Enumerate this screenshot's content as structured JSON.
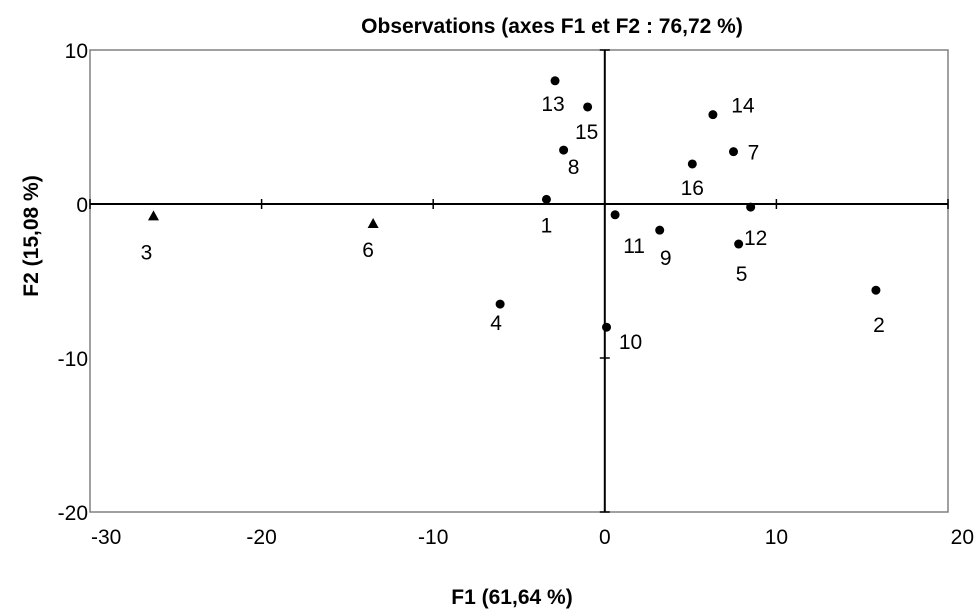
{
  "chart_data": {
    "type": "scatter",
    "title": "Observations (axes F1 et F2 : 76,72 %)",
    "xlabel": "F1 (61,64 %)",
    "ylabel": "F2 (15,08 %)",
    "xlim": [
      -30,
      20
    ],
    "ylim": [
      -20,
      10
    ],
    "xticks": [
      "-30",
      "-20",
      "-10",
      "0",
      "10",
      "20"
    ],
    "yticks": [
      "10",
      "0",
      "-10",
      "-20"
    ],
    "grid": false,
    "zero_lines": true,
    "marker_color": "#000000",
    "points": [
      {
        "label": "1",
        "x": -3.4,
        "y": 0.3,
        "marker": "circle"
      },
      {
        "label": "2",
        "x": 15.8,
        "y": -5.6,
        "marker": "circle"
      },
      {
        "label": "3",
        "x": -26.3,
        "y": -0.8,
        "marker": "triangle"
      },
      {
        "label": "4",
        "x": -6.1,
        "y": -6.5,
        "marker": "circle"
      },
      {
        "label": "5",
        "x": 7.8,
        "y": -2.6,
        "marker": "circle"
      },
      {
        "label": "6",
        "x": -13.5,
        "y": -1.3,
        "marker": "triangle"
      },
      {
        "label": "7",
        "x": 7.5,
        "y": 3.4,
        "marker": "circle"
      },
      {
        "label": "8",
        "x": -2.4,
        "y": 3.5,
        "marker": "circle"
      },
      {
        "label": "9",
        "x": 3.2,
        "y": -1.7,
        "marker": "circle"
      },
      {
        "label": "10",
        "x": 0.1,
        "y": -8.0,
        "marker": "circle"
      },
      {
        "label": "11",
        "x": 0.6,
        "y": -0.7,
        "marker": "circle"
      },
      {
        "label": "12",
        "x": 8.5,
        "y": -0.2,
        "marker": "circle"
      },
      {
        "label": "13",
        "x": -2.9,
        "y": 8.0,
        "marker": "circle"
      },
      {
        "label": "14",
        "x": 6.3,
        "y": 5.8,
        "marker": "circle"
      },
      {
        "label": "15",
        "x": -1.0,
        "y": 6.3,
        "marker": "circle"
      },
      {
        "label": "16",
        "x": 5.1,
        "y": 2.6,
        "marker": "circle"
      }
    ]
  }
}
